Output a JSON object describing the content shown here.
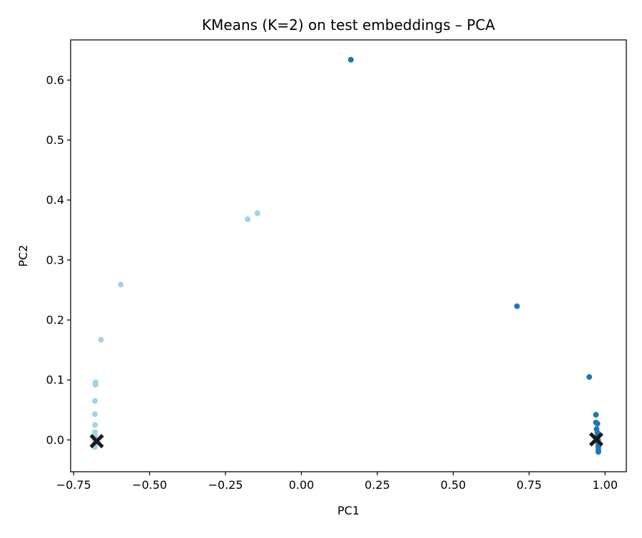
{
  "chart_data": {
    "type": "scatter",
    "title": "KMeans (K=2) on test embeddings – PCA",
    "xlabel": "PC1",
    "ylabel": "PC2",
    "xlim": [
      -0.76,
      1.07
    ],
    "ylim": [
      -0.053,
      0.667
    ],
    "grid": false,
    "xticks": [
      {
        "value": -0.75,
        "label": "−0.75"
      },
      {
        "value": -0.5,
        "label": "−0.50"
      },
      {
        "value": -0.25,
        "label": "−0.25"
      },
      {
        "value": 0.0,
        "label": "0.00"
      },
      {
        "value": 0.25,
        "label": "0.25"
      },
      {
        "value": 0.5,
        "label": "0.50"
      },
      {
        "value": 0.75,
        "label": "0.75"
      },
      {
        "value": 1.0,
        "label": "1.00"
      }
    ],
    "yticks": [
      {
        "value": 0.0,
        "label": "0.0"
      },
      {
        "value": 0.1,
        "label": "0.1"
      },
      {
        "value": 0.2,
        "label": "0.2"
      },
      {
        "value": 0.3,
        "label": "0.3"
      },
      {
        "value": 0.4,
        "label": "0.4"
      },
      {
        "value": 0.5,
        "label": "0.5"
      },
      {
        "value": 0.6,
        "label": "0.6"
      }
    ],
    "series": [
      {
        "color": "#9fd4e3",
        "points": [
          [
            -0.68,
            -0.012
          ],
          [
            -0.68,
            -0.008
          ],
          [
            -0.68,
            -0.004
          ],
          [
            -0.68,
            0.0
          ],
          [
            -0.68,
            0.004
          ],
          [
            -0.68,
            0.008
          ],
          [
            -0.68,
            0.013
          ],
          [
            -0.68,
            0.025
          ],
          [
            -0.68,
            0.043
          ],
          [
            -0.68,
            0.065
          ],
          [
            -0.678,
            0.092
          ],
          [
            -0.678,
            0.096
          ],
          [
            -0.66,
            0.167
          ],
          [
            -0.595,
            0.259
          ],
          [
            -0.177,
            0.368
          ],
          [
            -0.145,
            0.378
          ]
        ]
      },
      {
        "color": "#1f77b4",
        "points": [
          [
            0.163,
            0.634
          ],
          [
            0.71,
            0.223
          ],
          [
            0.948,
            0.105
          ],
          [
            0.97,
            0.042
          ],
          [
            0.97,
            0.029
          ],
          [
            0.975,
            0.027
          ],
          [
            0.972,
            0.018
          ],
          [
            0.975,
            0.012
          ],
          [
            0.975,
            0.006
          ],
          [
            0.977,
            0.0
          ],
          [
            0.977,
            -0.004
          ],
          [
            0.978,
            -0.009
          ],
          [
            0.978,
            -0.013
          ],
          [
            0.978,
            -0.017
          ],
          [
            0.978,
            -0.02
          ]
        ]
      }
    ],
    "centroids": {
      "color": "#1a1a1a",
      "marker": "X",
      "points": [
        [
          -0.674,
          -0.002
        ],
        [
          0.971,
          0.001
        ]
      ]
    }
  }
}
